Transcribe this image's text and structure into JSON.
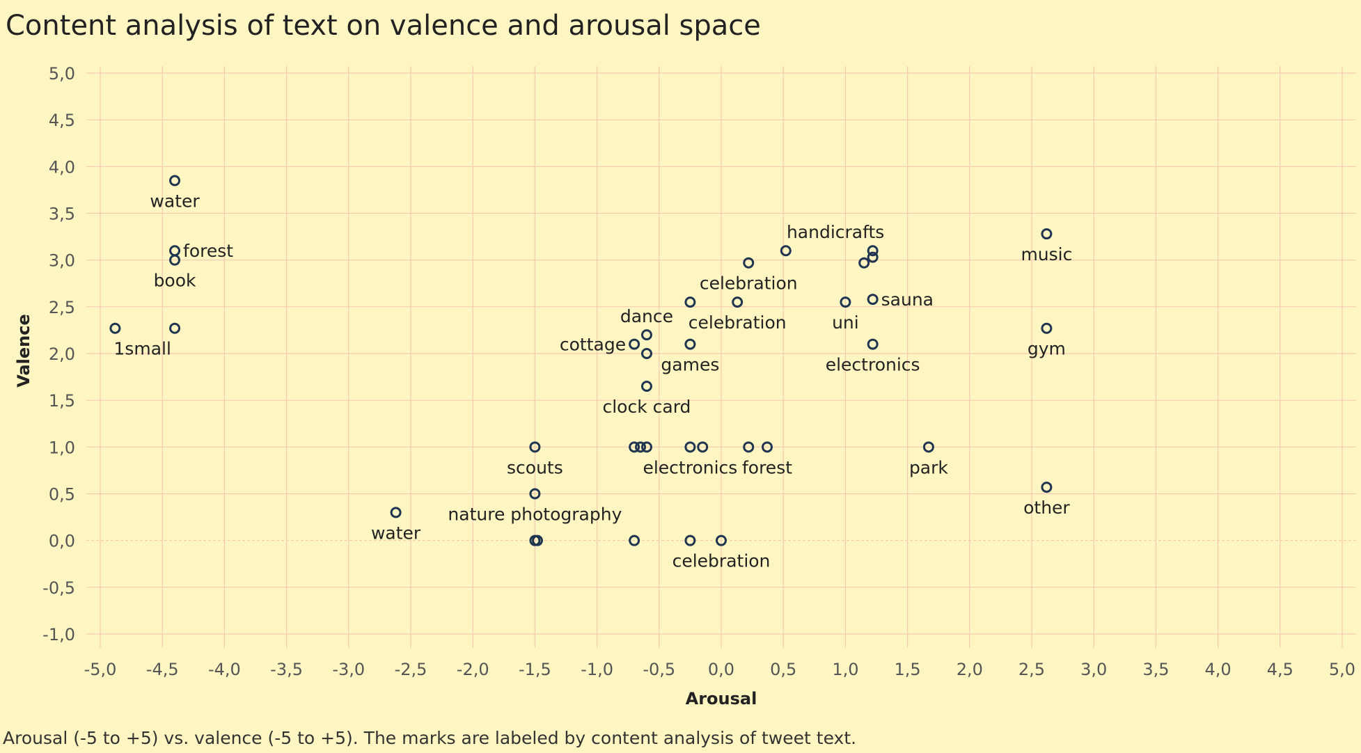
{
  "caption": "Arousal (-5 to +5) vs. valence (-5 to +5).  The marks are labeled by content analysis of tweet text.",
  "colors": {
    "background": "#fdf6c2",
    "grid": "#f4c9b0",
    "marker_stroke": "#1f3550",
    "text": "#222222"
  },
  "chart_data": {
    "type": "scatter",
    "title": "Content analysis of text on valence and arousal space",
    "xlabel": "Arousal",
    "ylabel": "Valence",
    "xlim": [
      -5.0,
      5.0
    ],
    "ylim": [
      -1.0,
      5.0
    ],
    "x_ticks": [
      "-5,0",
      "-4,5",
      "-4,0",
      "-3,5",
      "-3,0",
      "-2,5",
      "-2,0",
      "-1,5",
      "-1,0",
      "-0,5",
      "0,0",
      "0,5",
      "1,0",
      "1,5",
      "2,0",
      "2,5",
      "3,0",
      "3,5",
      "4,0",
      "4,5",
      "5,0"
    ],
    "y_ticks": [
      "5,0",
      "4,5",
      "4,0",
      "3,5",
      "3,0",
      "2,5",
      "2,0",
      "1,5",
      "1,0",
      "0,5",
      "0,0",
      "-0,5",
      "-1,0"
    ],
    "points": [
      {
        "x": -4.4,
        "y": 3.85
      },
      {
        "x": -4.4,
        "y": 3.1
      },
      {
        "x": -4.4,
        "y": 3.0
      },
      {
        "x": -4.4,
        "y": 2.27
      },
      {
        "x": -4.88,
        "y": 2.27
      },
      {
        "x": -2.62,
        "y": 0.3
      },
      {
        "x": -1.5,
        "y": 1.0
      },
      {
        "x": -1.5,
        "y": 0.5
      },
      {
        "x": -1.5,
        "y": 0.0
      },
      {
        "x": -1.48,
        "y": 0.0
      },
      {
        "x": -0.7,
        "y": 0.0
      },
      {
        "x": -0.25,
        "y": 0.0
      },
      {
        "x": 0.0,
        "y": 0.0
      },
      {
        "x": -0.7,
        "y": 1.0
      },
      {
        "x": -0.65,
        "y": 1.0
      },
      {
        "x": -0.6,
        "y": 1.0
      },
      {
        "x": -0.25,
        "y": 1.0
      },
      {
        "x": -0.15,
        "y": 1.0
      },
      {
        "x": 0.22,
        "y": 1.0
      },
      {
        "x": 0.37,
        "y": 1.0
      },
      {
        "x": -0.6,
        "y": 1.65
      },
      {
        "x": -0.7,
        "y": 2.1
      },
      {
        "x": -0.6,
        "y": 2.2
      },
      {
        "x": -0.6,
        "y": 2.0
      },
      {
        "x": -0.25,
        "y": 2.1
      },
      {
        "x": -0.25,
        "y": 2.55
      },
      {
        "x": 0.13,
        "y": 2.55
      },
      {
        "x": 0.22,
        "y": 2.97
      },
      {
        "x": 0.52,
        "y": 3.1
      },
      {
        "x": 1.0,
        "y": 2.55
      },
      {
        "x": 1.22,
        "y": 2.58
      },
      {
        "x": 1.22,
        "y": 2.1
      },
      {
        "x": 1.15,
        "y": 2.97
      },
      {
        "x": 1.22,
        "y": 3.03
      },
      {
        "x": 1.22,
        "y": 3.1
      },
      {
        "x": 1.67,
        "y": 1.0
      },
      {
        "x": 2.62,
        "y": 3.28
      },
      {
        "x": 2.62,
        "y": 2.27
      },
      {
        "x": 2.62,
        "y": 0.57
      }
    ],
    "labels": [
      {
        "text": "water",
        "x": -4.4,
        "y": 3.85,
        "pos": "below"
      },
      {
        "text": "forest",
        "x": -4.4,
        "y": 3.1,
        "pos": "right"
      },
      {
        "text": "book",
        "x": -4.4,
        "y": 3.0,
        "pos": "below"
      },
      {
        "text": "1small",
        "x": -4.88,
        "y": 2.27,
        "pos": "below-right"
      },
      {
        "text": "water",
        "x": -2.62,
        "y": 0.3,
        "pos": "below"
      },
      {
        "text": "scouts",
        "x": -1.5,
        "y": 1.0,
        "pos": "below"
      },
      {
        "text": "nature photography",
        "x": -1.5,
        "y": 0.5,
        "pos": "below"
      },
      {
        "text": "celebration",
        "x": 0.0,
        "y": 0.0,
        "pos": "below"
      },
      {
        "text": "electronics",
        "x": -0.25,
        "y": 1.0,
        "pos": "below"
      },
      {
        "text": "forest",
        "x": 0.37,
        "y": 1.0,
        "pos": "below"
      },
      {
        "text": "clock card",
        "x": -0.6,
        "y": 1.65,
        "pos": "below"
      },
      {
        "text": "cottage",
        "x": -0.7,
        "y": 2.1,
        "pos": "left"
      },
      {
        "text": "dance",
        "x": -0.6,
        "y": 2.2,
        "pos": "above"
      },
      {
        "text": "games",
        "x": -0.25,
        "y": 2.1,
        "pos": "below"
      },
      {
        "text": "celebration",
        "x": 0.13,
        "y": 2.55,
        "pos": "below"
      },
      {
        "text": "celebration",
        "x": 0.22,
        "y": 2.97,
        "pos": "below"
      },
      {
        "text": "handicrafts",
        "x": 0.92,
        "y": 3.1,
        "pos": "above"
      },
      {
        "text": "uni",
        "x": 1.0,
        "y": 2.55,
        "pos": "below"
      },
      {
        "text": "sauna",
        "x": 1.22,
        "y": 2.58,
        "pos": "right"
      },
      {
        "text": "electronics",
        "x": 1.22,
        "y": 2.1,
        "pos": "below"
      },
      {
        "text": "park",
        "x": 1.67,
        "y": 1.0,
        "pos": "below"
      },
      {
        "text": "music",
        "x": 2.62,
        "y": 3.28,
        "pos": "below"
      },
      {
        "text": "gym",
        "x": 2.62,
        "y": 2.27,
        "pos": "below"
      },
      {
        "text": "other",
        "x": 2.62,
        "y": 0.57,
        "pos": "below"
      }
    ]
  }
}
